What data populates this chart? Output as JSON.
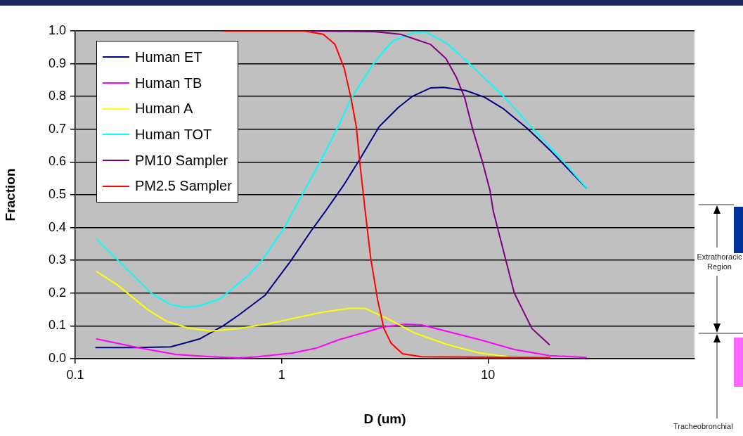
{
  "chart_data": {
    "type": "line",
    "xlabel": "D (um)",
    "ylabel": "Fraction",
    "log": "x",
    "xlim": [
      0.1,
      100
    ],
    "xticks": [
      0.1,
      1,
      10
    ],
    "ylim": [
      0,
      1
    ],
    "yticks": [
      {
        "value": 0,
        "label": "0.0"
      },
      0.1,
      0.2,
      0.3,
      0.4,
      0.5,
      0.6,
      0.7,
      0.8,
      0.9,
      {
        "value": 1,
        "label": "1.0"
      }
    ],
    "grid": "y",
    "legend": "top left",
    "marker": "none",
    "line_style": "solid",
    "annotations": [
      "Extrathoracic Region",
      "Tracheobronchial"
    ],
    "series": [
      {
        "name": "Human ET",
        "color": "#000080",
        "x": [
          0.126,
          0.2,
          0.29,
          0.4,
          0.52,
          0.62,
          0.83,
          1.1,
          1.39,
          1.63,
          2.0,
          2.4,
          2.97,
          3.67,
          4.29,
          5.26,
          6.1,
          7.8,
          9.6,
          11.9,
          15.4,
          19.9,
          29.9
        ],
        "values": [
          0.034,
          0.034,
          0.036,
          0.06,
          0.1,
          0.133,
          0.193,
          0.296,
          0.39,
          0.45,
          0.53,
          0.61,
          0.708,
          0.766,
          0.8,
          0.826,
          0.828,
          0.818,
          0.798,
          0.762,
          0.704,
          0.637,
          0.521
        ]
      },
      {
        "name": "Human TB",
        "color": "#ff00ff",
        "x": [
          0.127,
          0.207,
          0.307,
          0.453,
          0.62,
          0.765,
          1.13,
          1.47,
          1.9,
          2.49,
          3.13,
          3.96,
          4.76,
          6.1,
          9.1,
          13.4,
          19.9,
          29.9
        ],
        "values": [
          0.06,
          0.032,
          0.013,
          0.006,
          0.002,
          0.006,
          0.017,
          0.032,
          0.058,
          0.079,
          0.097,
          0.105,
          0.103,
          0.086,
          0.058,
          0.028,
          0.009,
          0.004
        ]
      },
      {
        "name": "Human A",
        "color": "#ffff00",
        "x": [
          0.127,
          0.16,
          0.224,
          0.277,
          0.35,
          0.453,
          0.62,
          0.868,
          1.16,
          1.59,
          2.17,
          2.54,
          3.21,
          4.39,
          6.35,
          9.1,
          12.4
        ],
        "values": [
          0.266,
          0.225,
          0.15,
          0.114,
          0.094,
          0.084,
          0.092,
          0.107,
          0.124,
          0.142,
          0.154,
          0.153,
          0.124,
          0.079,
          0.043,
          0.017,
          0.006
        ]
      },
      {
        "name": "Human TOT",
        "color": "#00ffff",
        "x": [
          0.127,
          0.161,
          0.233,
          0.29,
          0.339,
          0.397,
          0.502,
          0.687,
          0.803,
          1.02,
          1.28,
          1.59,
          1.9,
          2.17,
          2.75,
          3.21,
          3.47,
          4.39,
          5.02,
          6.35,
          8.22,
          11.9,
          16.6,
          22.8,
          29.9
        ],
        "values": [
          0.365,
          0.3,
          0.2,
          0.165,
          0.157,
          0.161,
          0.182,
          0.253,
          0.3,
          0.395,
          0.509,
          0.618,
          0.715,
          0.794,
          0.895,
          0.948,
          0.97,
          0.996,
          0.996,
          0.961,
          0.897,
          0.8,
          0.7,
          0.607,
          0.521
        ]
      },
      {
        "name": "PM10 Sampler",
        "color": "#800080",
        "x": [
          1.4,
          2.81,
          3.76,
          4.38,
          5.26,
          6.25,
          7.03,
          7.72,
          8.42,
          9.4,
          10.2,
          10.6,
          12.2,
          13.4,
          16.3,
          19.8
        ],
        "values": [
          1,
          0.998,
          0.99,
          0.976,
          0.959,
          0.916,
          0.858,
          0.794,
          0.7,
          0.6,
          0.515,
          0.45,
          0.3,
          0.2,
          0.092,
          0.043
        ]
      },
      {
        "name": "PM2.5 Sampler",
        "color": "#ff0000",
        "x": [
          0.526,
          1.28,
          1.59,
          1.81,
          2.01,
          2.17,
          2.3,
          2.39,
          2.54,
          2.7,
          2.92,
          3.13,
          3.39,
          3.85,
          4.75,
          19.9
        ],
        "values": [
          1,
          1,
          0.99,
          0.96,
          0.886,
          0.794,
          0.708,
          0.6,
          0.45,
          0.307,
          0.178,
          0.092,
          0.047,
          0.015,
          0.006,
          0.003
        ]
      }
    ]
  }
}
